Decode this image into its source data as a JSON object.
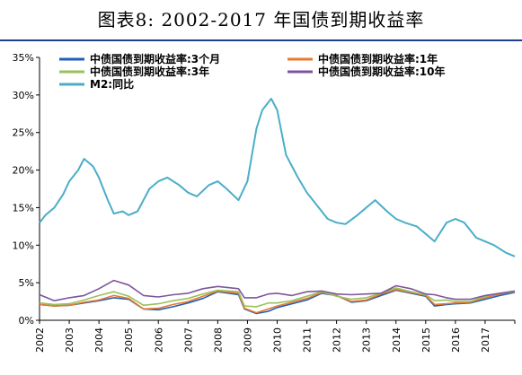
{
  "title": "图表8: 2002-2017 年国债到期收益率",
  "chart_data": {
    "type": "line",
    "title": "图表8: 2002-2017 年国债到期收益率",
    "xlabel": "",
    "ylabel": "",
    "x_ticks": [
      "2002",
      "2003",
      "2004",
      "2005",
      "2006",
      "2007",
      "2008",
      "2009",
      "2010",
      "2011",
      "2012",
      "2013",
      "2014",
      "2015",
      "2016",
      "2017"
    ],
    "xlim": [
      2002,
      2018
    ],
    "ylim": [
      0,
      35
    ],
    "y_ticks": [
      "0%",
      "5%",
      "10%",
      "15%",
      "20%",
      "25%",
      "30%",
      "35%"
    ],
    "y_tick_values": [
      0,
      5,
      10,
      15,
      20,
      25,
      30,
      35
    ],
    "grid": false,
    "legend_position": "top",
    "series": [
      {
        "name": "中债国债到期收益率:3个月",
        "color": "#1f5fb5",
        "data": [
          [
            2002.0,
            2.1
          ],
          [
            2002.5,
            1.9
          ],
          [
            2003.0,
            2.0
          ],
          [
            2003.5,
            2.3
          ],
          [
            2004.0,
            2.6
          ],
          [
            2004.5,
            3.0
          ],
          [
            2005.0,
            2.8
          ],
          [
            2005.5,
            1.5
          ],
          [
            2006.0,
            1.4
          ],
          [
            2006.5,
            1.8
          ],
          [
            2007.0,
            2.3
          ],
          [
            2007.5,
            2.9
          ],
          [
            2008.0,
            3.8
          ],
          [
            2008.7,
            3.4
          ],
          [
            2008.9,
            1.5
          ],
          [
            2009.3,
            0.9
          ],
          [
            2009.7,
            1.2
          ],
          [
            2010.0,
            1.7
          ],
          [
            2010.5,
            2.2
          ],
          [
            2011.0,
            2.7
          ],
          [
            2011.5,
            3.6
          ],
          [
            2012.0,
            3.3
          ],
          [
            2012.5,
            2.4
          ],
          [
            2013.0,
            2.6
          ],
          [
            2013.5,
            3.3
          ],
          [
            2014.0,
            4.0
          ],
          [
            2014.5,
            3.6
          ],
          [
            2015.0,
            3.2
          ],
          [
            2015.3,
            1.9
          ],
          [
            2015.7,
            2.1
          ],
          [
            2016.0,
            2.2
          ],
          [
            2016.5,
            2.3
          ],
          [
            2017.0,
            2.8
          ],
          [
            2017.5,
            3.3
          ],
          [
            2018.0,
            3.7
          ]
        ]
      },
      {
        "name": "中债国债到期收益率:1年",
        "color": "#e8792f",
        "data": [
          [
            2002.0,
            2.1
          ],
          [
            2002.5,
            1.9
          ],
          [
            2003.0,
            2.0
          ],
          [
            2003.5,
            2.4
          ],
          [
            2004.0,
            2.7
          ],
          [
            2004.5,
            3.3
          ],
          [
            2005.0,
            2.9
          ],
          [
            2005.5,
            1.5
          ],
          [
            2006.0,
            1.6
          ],
          [
            2006.5,
            2.1
          ],
          [
            2007.0,
            2.5
          ],
          [
            2007.5,
            3.2
          ],
          [
            2008.0,
            3.9
          ],
          [
            2008.7,
            3.6
          ],
          [
            2008.9,
            1.6
          ],
          [
            2009.3,
            1.0
          ],
          [
            2009.7,
            1.5
          ],
          [
            2010.0,
            1.9
          ],
          [
            2010.5,
            2.4
          ],
          [
            2011.0,
            2.9
          ],
          [
            2011.5,
            3.7
          ],
          [
            2012.0,
            3.3
          ],
          [
            2012.5,
            2.5
          ],
          [
            2013.0,
            2.7
          ],
          [
            2013.5,
            3.5
          ],
          [
            2014.0,
            4.1
          ],
          [
            2014.5,
            3.7
          ],
          [
            2015.0,
            3.3
          ],
          [
            2015.3,
            2.1
          ],
          [
            2015.7,
            2.2
          ],
          [
            2016.0,
            2.3
          ],
          [
            2016.5,
            2.4
          ],
          [
            2017.0,
            3.0
          ],
          [
            2017.5,
            3.5
          ],
          [
            2018.0,
            3.8
          ]
        ]
      },
      {
        "name": "中债国债到期收益率:3年",
        "color": "#9ac15b",
        "data": [
          [
            2002.0,
            2.3
          ],
          [
            2002.5,
            2.1
          ],
          [
            2003.0,
            2.2
          ],
          [
            2003.5,
            2.7
          ],
          [
            2004.0,
            3.3
          ],
          [
            2004.5,
            3.8
          ],
          [
            2005.0,
            3.2
          ],
          [
            2005.5,
            2.0
          ],
          [
            2006.0,
            2.2
          ],
          [
            2006.5,
            2.6
          ],
          [
            2007.0,
            2.9
          ],
          [
            2007.5,
            3.5
          ],
          [
            2008.0,
            4.0
          ],
          [
            2008.7,
            3.8
          ],
          [
            2008.9,
            1.9
          ],
          [
            2009.3,
            1.8
          ],
          [
            2009.7,
            2.3
          ],
          [
            2010.0,
            2.3
          ],
          [
            2010.5,
            2.6
          ],
          [
            2011.0,
            3.2
          ],
          [
            2011.5,
            3.8
          ],
          [
            2012.0,
            3.2
          ],
          [
            2012.5,
            2.8
          ],
          [
            2013.0,
            3.0
          ],
          [
            2013.5,
            3.6
          ],
          [
            2014.0,
            4.3
          ],
          [
            2014.5,
            3.8
          ],
          [
            2015.0,
            3.4
          ],
          [
            2015.3,
            2.6
          ],
          [
            2015.7,
            2.7
          ],
          [
            2016.0,
            2.5
          ],
          [
            2016.5,
            2.5
          ],
          [
            2017.0,
            3.2
          ],
          [
            2017.5,
            3.6
          ],
          [
            2018.0,
            3.8
          ]
        ]
      },
      {
        "name": "中债国债到期收益率:10年",
        "color": "#7d559c",
        "data": [
          [
            2002.0,
            3.4
          ],
          [
            2002.5,
            2.6
          ],
          [
            2003.0,
            3.0
          ],
          [
            2003.5,
            3.3
          ],
          [
            2004.0,
            4.2
          ],
          [
            2004.5,
            5.3
          ],
          [
            2005.0,
            4.7
          ],
          [
            2005.5,
            3.3
          ],
          [
            2006.0,
            3.1
          ],
          [
            2006.5,
            3.4
          ],
          [
            2007.0,
            3.6
          ],
          [
            2007.5,
            4.2
          ],
          [
            2008.0,
            4.5
          ],
          [
            2008.7,
            4.2
          ],
          [
            2008.9,
            3.0
          ],
          [
            2009.3,
            3.0
          ],
          [
            2009.7,
            3.5
          ],
          [
            2010.0,
            3.6
          ],
          [
            2010.5,
            3.3
          ],
          [
            2011.0,
            3.8
          ],
          [
            2011.5,
            3.9
          ],
          [
            2012.0,
            3.5
          ],
          [
            2012.5,
            3.4
          ],
          [
            2013.0,
            3.5
          ],
          [
            2013.5,
            3.6
          ],
          [
            2014.0,
            4.6
          ],
          [
            2014.5,
            4.2
          ],
          [
            2015.0,
            3.5
          ],
          [
            2015.3,
            3.4
          ],
          [
            2015.7,
            3.0
          ],
          [
            2016.0,
            2.8
          ],
          [
            2016.5,
            2.8
          ],
          [
            2017.0,
            3.3
          ],
          [
            2017.5,
            3.6
          ],
          [
            2018.0,
            3.9
          ]
        ]
      },
      {
        "name": "M2:同比",
        "color": "#4baec8",
        "data": [
          [
            2002.0,
            13.0
          ],
          [
            2002.2,
            14.0
          ],
          [
            2002.5,
            15.0
          ],
          [
            2002.8,
            16.8
          ],
          [
            2003.0,
            18.5
          ],
          [
            2003.3,
            20.0
          ],
          [
            2003.5,
            21.5
          ],
          [
            2003.8,
            20.5
          ],
          [
            2004.0,
            19.0
          ],
          [
            2004.3,
            16.0
          ],
          [
            2004.5,
            14.2
          ],
          [
            2004.8,
            14.5
          ],
          [
            2005.0,
            14.0
          ],
          [
            2005.3,
            14.5
          ],
          [
            2005.7,
            17.5
          ],
          [
            2006.0,
            18.5
          ],
          [
            2006.3,
            19.0
          ],
          [
            2006.7,
            18.0
          ],
          [
            2007.0,
            17.0
          ],
          [
            2007.3,
            16.5
          ],
          [
            2007.7,
            18.0
          ],
          [
            2008.0,
            18.5
          ],
          [
            2008.3,
            17.5
          ],
          [
            2008.7,
            16.0
          ],
          [
            2009.0,
            18.5
          ],
          [
            2009.3,
            25.5
          ],
          [
            2009.5,
            28.0
          ],
          [
            2009.8,
            29.5
          ],
          [
            2010.0,
            28.0
          ],
          [
            2010.3,
            22.0
          ],
          [
            2010.7,
            19.0
          ],
          [
            2011.0,
            17.0
          ],
          [
            2011.3,
            15.5
          ],
          [
            2011.7,
            13.5
          ],
          [
            2012.0,
            13.0
          ],
          [
            2012.3,
            12.8
          ],
          [
            2012.7,
            14.0
          ],
          [
            2013.0,
            15.0
          ],
          [
            2013.3,
            16.0
          ],
          [
            2013.7,
            14.5
          ],
          [
            2014.0,
            13.5
          ],
          [
            2014.3,
            13.0
          ],
          [
            2014.7,
            12.5
          ],
          [
            2015.0,
            11.5
          ],
          [
            2015.3,
            10.5
          ],
          [
            2015.7,
            13.0
          ],
          [
            2016.0,
            13.5
          ],
          [
            2016.3,
            13.0
          ],
          [
            2016.7,
            11.0
          ],
          [
            2017.0,
            10.5
          ],
          [
            2017.3,
            10.0
          ],
          [
            2017.7,
            9.0
          ],
          [
            2018.0,
            8.5
          ]
        ]
      }
    ]
  }
}
